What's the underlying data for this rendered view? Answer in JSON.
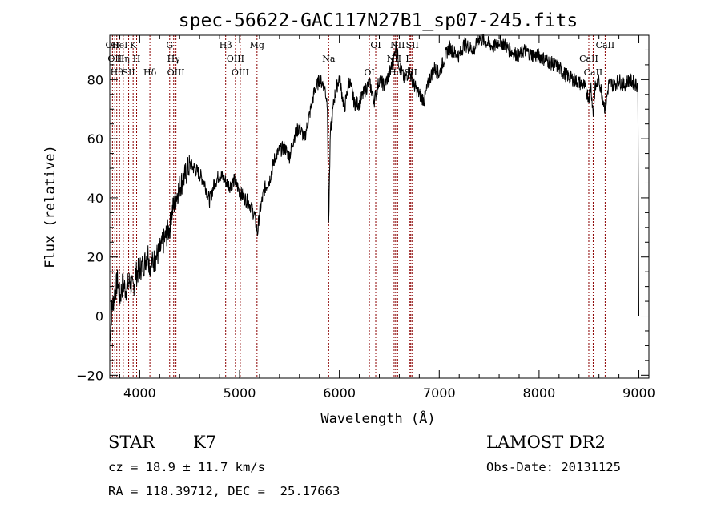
{
  "chart_data": {
    "type": "line",
    "title": "spec-56622-GAC117N27B1_sp07-245.fits",
    "xlabel": "Wavelength (Å)",
    "ylabel": "Flux (relative)",
    "xlim": [
      3700,
      9100
    ],
    "ylim": [
      -21,
      95
    ],
    "xticks": [
      4000,
      5000,
      6000,
      7000,
      8000,
      9000
    ],
    "yticks": [
      -20,
      0,
      20,
      40,
      60,
      80
    ],
    "xtick_labels": [
      "4000",
      "5000",
      "6000",
      "7000",
      "8000",
      "9000"
    ],
    "ytick_labels": [
      "−20",
      "0",
      "20",
      "40",
      "60",
      "80"
    ],
    "grid": false,
    "line_color": "#000000",
    "marker_color": "#8b0000",
    "series": [
      {
        "x": [
          3700,
          3720,
          3750,
          3780,
          3800,
          3830,
          3860,
          3900,
          3930,
          3960,
          4000,
          4050,
          4080,
          4100,
          4150,
          4200,
          4250,
          4300,
          4330,
          4360,
          4400,
          4450,
          4500,
          4550,
          4600,
          4650,
          4700,
          4750,
          4800,
          4850,
          4900,
          4950,
          5000,
          5050,
          5100,
          5150,
          5180,
          5200,
          5250,
          5300,
          5350,
          5400,
          5450,
          5500,
          5550,
          5600,
          5650,
          5700,
          5750,
          5800,
          5850,
          5880,
          5893,
          5910,
          5950,
          6000,
          6050,
          6100,
          6150,
          6200,
          6250,
          6300,
          6350,
          6400,
          6450,
          6500,
          6550,
          6563,
          6600,
          6650,
          6700,
          6750,
          6800,
          6850,
          6900,
          6950,
          7000,
          7050,
          7100,
          7150,
          7200,
          7250,
          7300,
          7350,
          7400,
          7450,
          7500,
          7550,
          7600,
          7650,
          7700,
          7750,
          7800,
          7850,
          7900,
          7950,
          8000,
          8050,
          8100,
          8150,
          8200,
          8250,
          8300,
          8350,
          8400,
          8450,
          8498,
          8520,
          8542,
          8560,
          8600,
          8662,
          8700,
          8750,
          8800,
          8850,
          8900,
          8950,
          8990,
          9000
        ],
        "y": [
          -8,
          2,
          8,
          12,
          6,
          11,
          9,
          12,
          9,
          14,
          16,
          18,
          22,
          17,
          19,
          22,
          26,
          30,
          36,
          40,
          44,
          47,
          51,
          50,
          48,
          45,
          39,
          45,
          48,
          46,
          44,
          46,
          42,
          40,
          38,
          34,
          28,
          35,
          43,
          46,
          53,
          56,
          57,
          54,
          61,
          64,
          60,
          68,
          76,
          80,
          78,
          72,
          32,
          62,
          74,
          81,
          70,
          80,
          72,
          72,
          76,
          79,
          73,
          80,
          78,
          82,
          88,
          92,
          85,
          80,
          83,
          78,
          75,
          73,
          80,
          84,
          82,
          87,
          91,
          89,
          88,
          92,
          91,
          90,
          94,
          93,
          92,
          91,
          93,
          92,
          90,
          89,
          88,
          90,
          89,
          88,
          88,
          87,
          86,
          85,
          84,
          82,
          81,
          80,
          79,
          78,
          74,
          78,
          68,
          77,
          80,
          70,
          79,
          78,
          80,
          78,
          80,
          79,
          78,
          0
        ]
      }
    ],
    "markers": [
      {
        "x": 3727,
        "top": "OII"
      },
      {
        "x": 3750,
        "top": "OII"
      },
      {
        "x": 3770,
        "top": "Hθ"
      },
      {
        "x": 3798,
        "top": "HeI"
      },
      {
        "x": 3835,
        "top": "Hη"
      },
      {
        "x": 3889,
        "top": "SII"
      },
      {
        "x": 3934,
        "top": "K"
      },
      {
        "x": 3969,
        "top": "H"
      },
      {
        "x": 4102,
        "top": "Hδ"
      },
      {
        "x": 4300,
        "top": "G"
      },
      {
        "x": 4340,
        "top": "Hγ"
      },
      {
        "x": 4363,
        "top": "OIII"
      },
      {
        "x": 4861,
        "top": "Hβ"
      },
      {
        "x": 4959,
        "top": "OIII"
      },
      {
        "x": 5007,
        "top": "OIII"
      },
      {
        "x": 5175,
        "top": "Mg"
      },
      {
        "x": 5893,
        "top": "Na"
      },
      {
        "x": 6300,
        "top": "OI"
      },
      {
        "x": 6364,
        "top": "OI"
      },
      {
        "x": 6548,
        "top": "NII"
      },
      {
        "x": 6563,
        "top": "Hα"
      },
      {
        "x": 6583,
        "top": "NII"
      },
      {
        "x": 6707,
        "top": "Li"
      },
      {
        "x": 6716,
        "top": "SII"
      },
      {
        "x": 6731,
        "top": "SII"
      },
      {
        "x": 8498,
        "top": "CaII"
      },
      {
        "x": 8542,
        "top": "CaII"
      },
      {
        "x": 8662,
        "top": "CaII"
      }
    ]
  },
  "info": {
    "object_class": "STAR",
    "subclass": "K7",
    "survey": "LAMOST DR2",
    "redshift": "cz = 18.9 ± 11.7 km/s",
    "obs_date": "Obs-Date: 20131125",
    "coords": "RA = 118.39712, DEC =  25.17663"
  }
}
